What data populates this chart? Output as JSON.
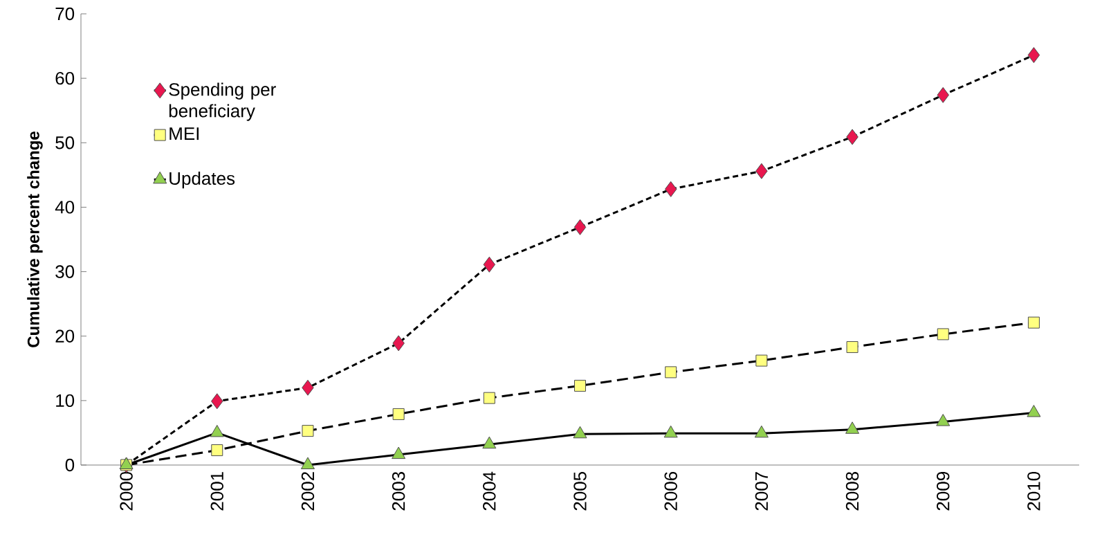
{
  "chart_data": {
    "type": "line",
    "ylabel": "Cumulative percent change",
    "categories": [
      "2000",
      "2001",
      "2002",
      "2003",
      "2004",
      "2005",
      "2006",
      "2007",
      "2008",
      "2009",
      "2010"
    ],
    "series": [
      {
        "name": "Spending per beneficiary",
        "color": "#e8174f",
        "marker": "diamond",
        "line_style": "dotted",
        "values": [
          0,
          9.9,
          12,
          18.9,
          31.1,
          36.9,
          42.8,
          45.6,
          50.9,
          57.4,
          63.6
        ]
      },
      {
        "name": "MEI",
        "color": "#ffff80",
        "marker": "square",
        "line_style": "dashed",
        "values": [
          0,
          2.3,
          5.3,
          7.9,
          10.4,
          12.3,
          14.4,
          16.2,
          18.3,
          20.3,
          22.1
        ]
      },
      {
        "name": "Updates",
        "color": "#92d050",
        "marker": "triangle",
        "line_style": "solid",
        "values": [
          0,
          5.0,
          0,
          1.6,
          3.2,
          4.8,
          4.9,
          4.9,
          5.5,
          6.7,
          8.1
        ]
      }
    ],
    "ylim": [
      0,
      70
    ],
    "yticks": [
      0,
      10,
      20,
      30,
      40,
      50,
      60,
      70
    ],
    "grid": false,
    "legend": "top left"
  }
}
